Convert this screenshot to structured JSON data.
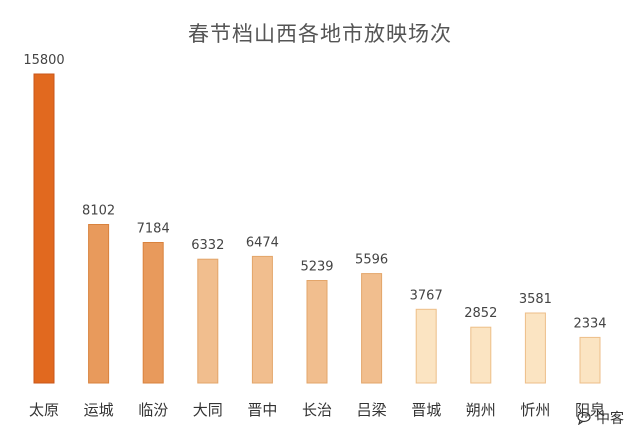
{
  "chart_data": {
    "type": "bar",
    "title": "春节档山西各地市放映场次",
    "categories": [
      "太原",
      "运城",
      "临汾",
      "大同",
      "晋中",
      "长治",
      "吕梁",
      "晋城",
      "朔州",
      "忻州",
      "阳泉"
    ],
    "values": [
      15800,
      8102,
      7184,
      6332,
      6474,
      5239,
      5596,
      3767,
      2852,
      3581,
      2334
    ],
    "xlabel": "",
    "ylabel": "",
    "ylim": [
      0,
      15800
    ],
    "grid": false,
    "legend": "none"
  },
  "colors": {
    "tier1_fill": "#E1691F",
    "tier1_stroke": "#C9561A",
    "tier2_fill": "#E89A5C",
    "tier2_stroke": "#D9823D",
    "tier3_fill": "#F1BE8E",
    "tier3_stroke": "#E3A56A",
    "tier4_fill": "#FBE4C2",
    "tier4_stroke": "#EDBE88"
  },
  "bar_tiers": [
    1,
    2,
    2,
    3,
    3,
    3,
    3,
    4,
    4,
    4,
    4
  ],
  "watermark": {
    "icon": "chat-bubble-icon",
    "text": "中客"
  }
}
